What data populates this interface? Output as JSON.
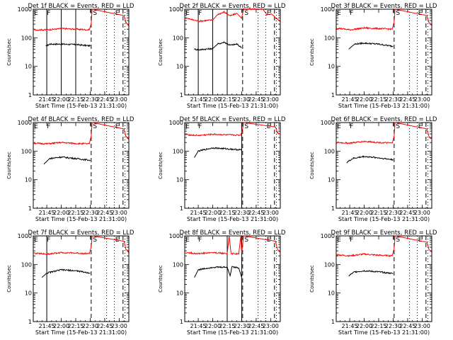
{
  "figure": {
    "xlabel": "Start Time (15-Feb-13 21:31:00)",
    "ylabel": "Counts/sec",
    "x_ticks": [
      "21:45",
      "22:00",
      "22:15",
      "22:30",
      "22:45",
      "23:00"
    ],
    "y_ticks": [
      "1",
      "10",
      "100",
      "1000"
    ],
    "colors": {
      "events": "#000000",
      "lld": "#ff0000",
      "axes": "#000000"
    }
  },
  "chart_data": [
    {
      "type": "line",
      "title": "Det 1f BLACK = Events, RED = LLD",
      "xlim": [
        "21:31",
        "23:10"
      ],
      "ylim": [
        1,
        1000
      ],
      "log_y": true,
      "event_letters": [
        "E",
        "F",
        "S",
        "E"
      ],
      "solid_lines": [
        "21:45",
        "22:00",
        "22:15"
      ],
      "dashed_lines": [
        "22:31",
        "23:04"
      ],
      "dotted_lines": [
        "22:47",
        "22:55",
        "23:06"
      ],
      "series": [
        {
          "name": "BLACK = Events",
          "points": [
            [
              "21:44",
              50
            ],
            [
              "21:48",
              60
            ],
            [
              "22:00",
              60
            ],
            [
              "22:15",
              58
            ],
            [
              "22:30",
              52
            ]
          ]
        },
        {
          "name": "RED = LLD",
          "points": [
            [
              "21:31",
              190
            ],
            [
              "21:45",
              190
            ],
            [
              "22:00",
              210
            ],
            [
              "22:15",
              200
            ],
            [
              "22:29",
              190
            ],
            [
              "22:31",
              300
            ],
            [
              "22:32",
              1000
            ],
            [
              "23:05",
              600
            ],
            [
              "23:07",
              350
            ],
            [
              "23:10",
              260
            ]
          ]
        }
      ]
    },
    {
      "type": "line",
      "title": "Det 2f BLACK = Events, RED = LLD",
      "xlim": [
        "21:31",
        "23:10"
      ],
      "ylim": [
        1,
        1000
      ],
      "log_y": true,
      "event_letters": [
        "E",
        "F",
        "S",
        "E"
      ],
      "solid_lines": [
        "21:45",
        "22:00",
        "22:15"
      ],
      "dashed_lines": [
        "22:31",
        "23:04"
      ],
      "dotted_lines": [
        "22:47",
        "22:55",
        "23:06"
      ],
      "series": [
        {
          "name": "BLACK = Events",
          "points": [
            [
              "21:41",
              40
            ],
            [
              "21:45",
              38
            ],
            [
              "22:00",
              42
            ],
            [
              "22:05",
              60
            ],
            [
              "22:12",
              70
            ],
            [
              "22:18",
              55
            ],
            [
              "22:25",
              60
            ],
            [
              "22:30",
              45
            ]
          ]
        },
        {
          "name": "RED = LLD",
          "points": [
            [
              "21:31",
              500
            ],
            [
              "21:45",
              380
            ],
            [
              "22:00",
              420
            ],
            [
              "22:05",
              650
            ],
            [
              "22:12",
              800
            ],
            [
              "22:18",
              580
            ],
            [
              "22:25",
              720
            ],
            [
              "22:30",
              480
            ],
            [
              "22:32",
              1000
            ],
            [
              "22:52",
              1000
            ],
            [
              "22:56",
              650
            ],
            [
              "23:00",
              700
            ],
            [
              "23:04",
              550
            ],
            [
              "23:07",
              450
            ],
            [
              "23:10",
              380
            ]
          ]
        }
      ]
    },
    {
      "type": "line",
      "title": "Det 3f BLACK = Events, RED = LLD",
      "xlim": [
        "21:31",
        "23:10"
      ],
      "ylim": [
        1,
        1000
      ],
      "log_y": true,
      "event_letters": [
        "E",
        "F",
        "S",
        "E"
      ],
      "solid_lines": [],
      "dashed_lines": [
        "22:31",
        "23:04"
      ],
      "dotted_lines": [
        "22:47",
        "22:55",
        "23:06"
      ],
      "series": [
        {
          "name": "BLACK = Events",
          "points": [
            [
              "21:44",
              40
            ],
            [
              "21:50",
              60
            ],
            [
              "22:00",
              65
            ],
            [
              "22:15",
              60
            ],
            [
              "22:30",
              50
            ]
          ]
        },
        {
          "name": "RED = LLD",
          "points": [
            [
              "21:31",
              220
            ],
            [
              "21:45",
              190
            ],
            [
              "22:00",
              220
            ],
            [
              "22:15",
              210
            ],
            [
              "22:29",
              200
            ],
            [
              "22:31",
              350
            ],
            [
              "22:32",
              1000
            ],
            [
              "23:05",
              600
            ],
            [
              "23:07",
              350
            ],
            [
              "23:10",
              260
            ]
          ]
        }
      ]
    },
    {
      "type": "line",
      "title": "Det 4f BLACK = Events, RED = LLD",
      "xlim": [
        "21:31",
        "23:10"
      ],
      "ylim": [
        1,
        1000
      ],
      "log_y": true,
      "event_letters": [
        "E",
        "F",
        "S",
        "E"
      ],
      "solid_lines": [],
      "dashed_lines": [
        "22:31",
        "23:04"
      ],
      "dotted_lines": [
        "22:47",
        "22:55",
        "23:06"
      ],
      "series": [
        {
          "name": "BLACK = Events",
          "points": [
            [
              "21:42",
              35
            ],
            [
              "21:48",
              55
            ],
            [
              "22:00",
              62
            ],
            [
              "22:15",
              55
            ],
            [
              "22:30",
              48
            ]
          ]
        },
        {
          "name": "RED = LLD",
          "points": [
            [
              "21:31",
              190
            ],
            [
              "21:45",
              180
            ],
            [
              "22:00",
              200
            ],
            [
              "22:15",
              185
            ],
            [
              "22:29",
              180
            ],
            [
              "22:31",
              330
            ],
            [
              "22:32",
              1000
            ],
            [
              "23:05",
              600
            ],
            [
              "23:07",
              320
            ],
            [
              "23:10",
              260
            ]
          ]
        }
      ]
    },
    {
      "type": "line",
      "title": "Det 5f BLACK = Events, RED = LLD",
      "xlim": [
        "21:31",
        "23:10"
      ],
      "ylim": [
        1,
        1000
      ],
      "log_y": true,
      "event_letters": [
        "E",
        "F",
        "S",
        "E"
      ],
      "solid_lines": [
        "22:30"
      ],
      "dashed_lines": [
        "22:31",
        "23:04"
      ],
      "dotted_lines": [
        "22:47",
        "22:55",
        "23:06"
      ],
      "series": [
        {
          "name": "BLACK = Events",
          "points": [
            [
              "21:41",
              60
            ],
            [
              "21:45",
              100
            ],
            [
              "22:00",
              130
            ],
            [
              "22:15",
              120
            ],
            [
              "22:30",
              110
            ]
          ]
        },
        {
          "name": "RED = LLD",
          "points": [
            [
              "21:31",
              380
            ],
            [
              "21:45",
              350
            ],
            [
              "22:00",
              390
            ],
            [
              "22:15",
              370
            ],
            [
              "22:29",
              360
            ],
            [
              "22:31",
              600
            ],
            [
              "22:32",
              1000
            ],
            [
              "23:05",
              700
            ],
            [
              "23:07",
              450
            ],
            [
              "23:10",
              380
            ]
          ]
        }
      ]
    },
    {
      "type": "line",
      "title": "Det 6f BLACK = Events, RED = LLD",
      "xlim": [
        "21:31",
        "23:10"
      ],
      "ylim": [
        1,
        1000
      ],
      "log_y": true,
      "event_letters": [
        "E",
        "F",
        "S",
        "E"
      ],
      "solid_lines": [],
      "dashed_lines": [
        "22:31",
        "23:04"
      ],
      "dotted_lines": [
        "22:47",
        "22:55",
        "23:06"
      ],
      "series": [
        {
          "name": "BLACK = Events",
          "points": [
            [
              "21:42",
              40
            ],
            [
              "21:48",
              55
            ],
            [
              "22:00",
              65
            ],
            [
              "22:15",
              58
            ],
            [
              "22:30",
              50
            ]
          ]
        },
        {
          "name": "RED = LLD",
          "points": [
            [
              "21:31",
              200
            ],
            [
              "21:45",
              190
            ],
            [
              "22:00",
              220
            ],
            [
              "22:15",
              200
            ],
            [
              "22:29",
              190
            ],
            [
              "22:31",
              330
            ],
            [
              "22:32",
              1000
            ],
            [
              "23:05",
              600
            ],
            [
              "23:07",
              330
            ],
            [
              "23:10",
              260
            ]
          ]
        }
      ]
    },
    {
      "type": "line",
      "title": "Det 7f BLACK = Events, RED = LLD",
      "xlim": [
        "21:31",
        "23:10"
      ],
      "ylim": [
        1,
        1000
      ],
      "log_y": true,
      "event_letters": [
        "E",
        "F",
        "S",
        "E"
      ],
      "solid_lines": [
        "21:45"
      ],
      "dashed_lines": [
        "22:31",
        "23:04"
      ],
      "dotted_lines": [
        "22:47",
        "22:55",
        "23:06"
      ],
      "series": [
        {
          "name": "BLACK = Events",
          "points": [
            [
              "21:40",
              35
            ],
            [
              "21:45",
              50
            ],
            [
              "22:00",
              65
            ],
            [
              "22:15",
              60
            ],
            [
              "22:30",
              50
            ]
          ]
        },
        {
          "name": "RED = LLD",
          "points": [
            [
              "21:31",
              250
            ],
            [
              "21:45",
              230
            ],
            [
              "22:00",
              260
            ],
            [
              "22:15",
              250
            ],
            [
              "22:29",
              240
            ],
            [
              "22:31",
              400
            ],
            [
              "22:32",
              1000
            ],
            [
              "23:05",
              650
            ],
            [
              "23:07",
              350
            ],
            [
              "23:10",
              260
            ]
          ]
        }
      ]
    },
    {
      "type": "line",
      "title": "Det 8f BLACK = Events, RED = LLD",
      "xlim": [
        "21:31",
        "23:10"
      ],
      "ylim": [
        1,
        1000
      ],
      "log_y": true,
      "event_letters": [
        "E",
        "F",
        "S",
        "E"
      ],
      "solid_lines": [
        "22:15",
        "22:30"
      ],
      "dashed_lines": [
        "22:31",
        "23:04"
      ],
      "dotted_lines": [
        "22:47",
        "22:55",
        "23:06"
      ],
      "series": [
        {
          "name": "BLACK = Events",
          "points": [
            [
              "21:41",
              35
            ],
            [
              "21:45",
              65
            ],
            [
              "22:00",
              80
            ],
            [
              "22:15",
              80
            ],
            [
              "22:18",
              40
            ],
            [
              "22:20",
              85
            ],
            [
              "22:27",
              75
            ],
            [
              "22:30",
              35
            ]
          ]
        },
        {
          "name": "RED = LLD",
          "points": [
            [
              "21:31",
              260
            ],
            [
              "21:45",
              240
            ],
            [
              "22:00",
              260
            ],
            [
              "22:15",
              240
            ],
            [
              "22:17",
              1000
            ],
            [
              "22:19",
              240
            ],
            [
              "22:27",
              230
            ],
            [
              "22:29",
              1000
            ],
            [
              "22:30",
              250
            ],
            [
              "22:32",
              1000
            ],
            [
              "23:05",
              650
            ],
            [
              "23:07",
              350
            ],
            [
              "23:10",
              250
            ]
          ]
        }
      ]
    },
    {
      "type": "line",
      "title": "Det 9f BLACK = Events, RED = LLD",
      "xlim": [
        "21:31",
        "23:10"
      ],
      "ylim": [
        1,
        1000
      ],
      "log_y": true,
      "event_letters": [
        "E",
        "F",
        "S",
        "E"
      ],
      "solid_lines": [],
      "dashed_lines": [
        "22:31",
        "23:04"
      ],
      "dotted_lines": [
        "22:47",
        "22:55",
        "23:06"
      ],
      "series": [
        {
          "name": "BLACK = Events",
          "points": [
            [
              "21:44",
              40
            ],
            [
              "21:50",
              55
            ],
            [
              "22:00",
              60
            ],
            [
              "22:15",
              55
            ],
            [
              "22:30",
              48
            ]
          ]
        },
        {
          "name": "RED = LLD",
          "points": [
            [
              "21:31",
              220
            ],
            [
              "21:45",
              200
            ],
            [
              "22:00",
              230
            ],
            [
              "22:15",
              210
            ],
            [
              "22:29",
              200
            ],
            [
              "22:31",
              350
            ],
            [
              "22:32",
              1000
            ],
            [
              "23:05",
              600
            ],
            [
              "23:07",
              350
            ],
            [
              "23:10",
              260
            ]
          ]
        }
      ]
    }
  ]
}
